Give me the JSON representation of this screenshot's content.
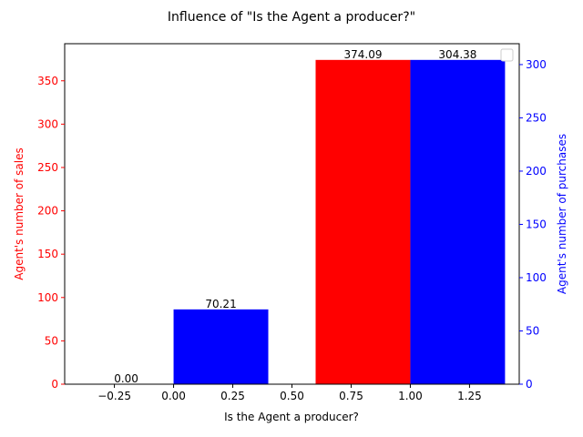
{
  "chart_data": {
    "type": "bar",
    "title": "Influence of \"Is the Agent a producer?\"",
    "xlabel": "Is the Agent a producer?",
    "xlim": [
      -0.46,
      1.46
    ],
    "xticks": [
      -0.25,
      0.0,
      0.25,
      0.5,
      0.75,
      1.0,
      1.25
    ],
    "xtick_labels": [
      "−0.25",
      "0.00",
      "0.25",
      "0.50",
      "0.75",
      "1.00",
      "1.25"
    ],
    "bar_width": 0.4,
    "legend": "top-right",
    "series": [
      {
        "axis": "left",
        "color": "#ff0000",
        "x": [
          -0.2,
          0.8
        ],
        "values": [
          0.0,
          374.09
        ],
        "data_labels": [
          "0.00",
          "374.09"
        ]
      },
      {
        "axis": "right",
        "color": "#0000ff",
        "x": [
          0.2,
          1.2
        ],
        "values": [
          70.21,
          304.38
        ],
        "data_labels": [
          "70.21",
          "304.38"
        ]
      }
    ],
    "y_left": {
      "label": "Agent's number of sales",
      "color": "#ff0000",
      "lim": [
        0,
        392.8
      ],
      "ticks": [
        0,
        50,
        100,
        150,
        200,
        250,
        300,
        350
      ],
      "tick_labels": [
        "0",
        "50",
        "100",
        "150",
        "200",
        "250",
        "300",
        "350"
      ]
    },
    "y_right": {
      "label": "Agent's number of purchases",
      "color": "#0000ff",
      "lim": [
        0,
        319.6
      ],
      "ticks": [
        0,
        50,
        100,
        150,
        200,
        250,
        300
      ],
      "tick_labels": [
        "0",
        "50",
        "100",
        "150",
        "200",
        "250",
        "300"
      ]
    }
  }
}
